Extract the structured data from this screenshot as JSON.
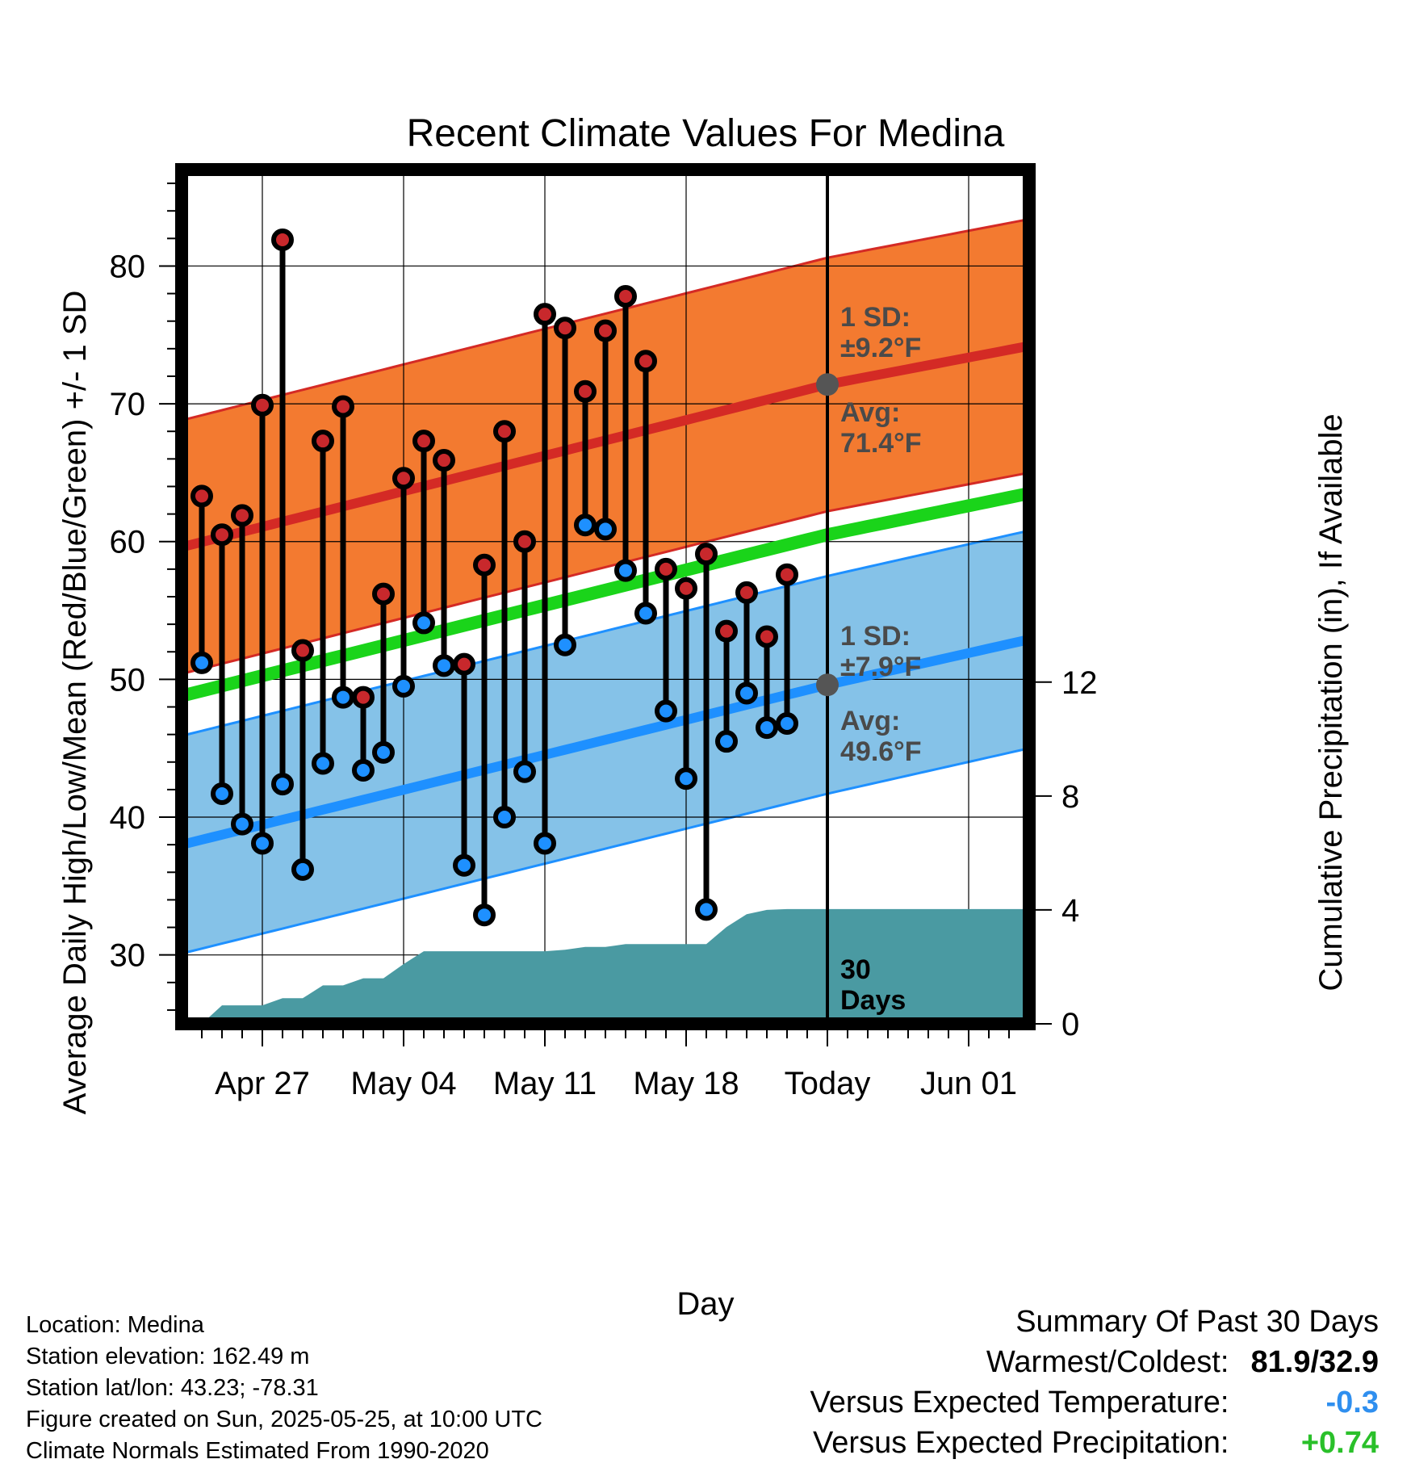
{
  "chart_data": {
    "type": "line",
    "title": "Recent Climate Values For Medina",
    "xlabel": "Day",
    "ylabel": "Average Daily High/Low/Mean (Red/Blue/Green) +/- 1 SD",
    "ylabel_right": "Cumulative Precipitation (in), If Available",
    "x_range": [
      "2025-04-23",
      "2025-06-04"
    ],
    "ylim": [
      25,
      87
    ],
    "y_ticks": [
      30,
      40,
      50,
      60,
      70,
      80
    ],
    "ylim_right": [
      0,
      30
    ],
    "y_ticks_right": [
      0,
      4,
      8,
      12
    ],
    "x_ticks": [
      {
        "date": "2025-04-27",
        "label": "Apr 27"
      },
      {
        "date": "2025-05-04",
        "label": "May 04"
      },
      {
        "date": "2025-05-11",
        "label": "May 11"
      },
      {
        "date": "2025-05-18",
        "label": "May 18"
      },
      {
        "date": "2025-05-25",
        "label": "Today"
      },
      {
        "date": "2025-06-01",
        "label": "Jun 01"
      }
    ],
    "today": "2025-05-25",
    "grid": true,
    "normals": {
      "high": {
        "x": [
          "2025-04-23",
          "2025-05-25",
          "2025-06-04"
        ],
        "y": [
          59.6,
          71.4,
          74.2
        ]
      },
      "low": {
        "x": [
          "2025-04-23",
          "2025-05-25",
          "2025-06-04"
        ],
        "y": [
          38.0,
          49.6,
          52.9
        ]
      },
      "mean": {
        "x": [
          "2025-04-23",
          "2025-05-25",
          "2025-06-04"
        ],
        "y": [
          48.8,
          60.5,
          63.5
        ]
      },
      "high_sd": 9.2,
      "low_sd": 7.9,
      "colors": {
        "high_band": "#f37a30",
        "high_line": "#d42a25",
        "low_band": "#85c2e8",
        "low_line": "#1e90ff",
        "mean_line": "#1ad41a",
        "precip": "#4a9aa2"
      }
    },
    "annotations": {
      "high_sd_label": "1 SD:",
      "high_sd_value": "±9.2°F",
      "high_avg_label": "Avg:",
      "high_avg_value": "71.4°F",
      "low_sd_label": "1 SD:",
      "low_sd_value": "±7.9°F",
      "low_avg_label": "Avg:",
      "low_avg_value": "49.6°F",
      "days_num": "30",
      "days_word": "Days"
    },
    "series": [
      {
        "name": "High",
        "color": "#c8282c",
        "x": [
          "2025-04-24",
          "2025-04-25",
          "2025-04-26",
          "2025-04-27",
          "2025-04-28",
          "2025-04-29",
          "2025-04-30",
          "2025-05-01",
          "2025-05-02",
          "2025-05-03",
          "2025-05-04",
          "2025-05-05",
          "2025-05-06",
          "2025-05-07",
          "2025-05-08",
          "2025-05-09",
          "2025-05-10",
          "2025-05-11",
          "2025-05-12",
          "2025-05-13",
          "2025-05-14",
          "2025-05-15",
          "2025-05-16",
          "2025-05-17",
          "2025-05-18",
          "2025-05-19",
          "2025-05-20",
          "2025-05-21",
          "2025-05-22",
          "2025-05-23",
          "2025-05-24"
        ],
        "values": [
          63.3,
          60.5,
          61.9,
          69.9,
          81.9,
          52.1,
          67.3,
          69.8,
          48.7,
          56.2,
          64.6,
          67.3,
          65.9,
          51.1,
          58.3,
          68.0,
          60.0,
          76.5,
          75.5,
          70.9,
          75.3,
          77.8,
          73.1,
          58.0,
          56.6,
          59.1,
          53.5,
          56.3,
          53.1,
          57.6,
          null
        ]
      },
      {
        "name": "Low",
        "color": "#1e90ff",
        "x": [
          "2025-04-24",
          "2025-04-25",
          "2025-04-26",
          "2025-04-27",
          "2025-04-28",
          "2025-04-29",
          "2025-04-30",
          "2025-05-01",
          "2025-05-02",
          "2025-05-03",
          "2025-05-04",
          "2025-05-05",
          "2025-05-06",
          "2025-05-07",
          "2025-05-08",
          "2025-05-09",
          "2025-05-10",
          "2025-05-11",
          "2025-05-12",
          "2025-05-13",
          "2025-05-14",
          "2025-05-15",
          "2025-05-16",
          "2025-05-17",
          "2025-05-18",
          "2025-05-19",
          "2025-05-20",
          "2025-05-21",
          "2025-05-22",
          "2025-05-23",
          "2025-05-24"
        ],
        "values": [
          51.2,
          41.7,
          39.5,
          38.1,
          42.4,
          36.2,
          43.9,
          48.7,
          43.4,
          44.7,
          49.5,
          54.1,
          51.0,
          36.5,
          32.9,
          40.0,
          43.3,
          38.1,
          52.5,
          61.2,
          60.9,
          57.9,
          54.8,
          47.7,
          42.8,
          33.3,
          45.5,
          49.0,
          46.5,
          46.8,
          null
        ]
      },
      {
        "name": "Cumulative Precipitation",
        "color": "#4a9aa2",
        "x": [
          "2025-04-24",
          "2025-04-25",
          "2025-04-26",
          "2025-04-27",
          "2025-04-28",
          "2025-04-29",
          "2025-04-30",
          "2025-05-01",
          "2025-05-02",
          "2025-05-03",
          "2025-05-04",
          "2025-05-05",
          "2025-05-06",
          "2025-05-07",
          "2025-05-08",
          "2025-05-09",
          "2025-05-10",
          "2025-05-11",
          "2025-05-12",
          "2025-05-13",
          "2025-05-14",
          "2025-05-15",
          "2025-05-16",
          "2025-05-17",
          "2025-05-18",
          "2025-05-19",
          "2025-05-20",
          "2025-05-21",
          "2025-05-22",
          "2025-05-23",
          "2025-05-24",
          "2025-05-25",
          "2025-06-04"
        ],
        "values": [
          0.0,
          0.65,
          0.65,
          0.65,
          0.9,
          0.9,
          1.35,
          1.35,
          1.6,
          1.6,
          2.1,
          2.55,
          2.55,
          2.55,
          2.55,
          2.55,
          2.55,
          2.55,
          2.6,
          2.7,
          2.7,
          2.8,
          2.8,
          2.8,
          2.8,
          2.8,
          3.4,
          3.85,
          4.0,
          4.03,
          4.03,
          4.03,
          4.03
        ]
      }
    ]
  },
  "footer": {
    "location": "Location: Medina",
    "elevation": "Station elevation: 162.49 m",
    "latlon": "Station lat/lon: 43.23; -78.31",
    "created": "Figure created on Sun, 2025-05-25, at 10:00 UTC",
    "normals_note": "Climate Normals Estimated From 1990-2020"
  },
  "summary": {
    "heading": "Summary Of Past 30 Days",
    "warm_cold_label": "Warmest/Coldest:",
    "warm_cold_value": "81.9/32.9",
    "temp_label": "Versus Expected Temperature:",
    "temp_value": "-0.3",
    "temp_color": "#2f8fef",
    "precip_label": "Versus Expected Precipitation:",
    "precip_value": "+0.74",
    "precip_color": "#2ac02a"
  }
}
